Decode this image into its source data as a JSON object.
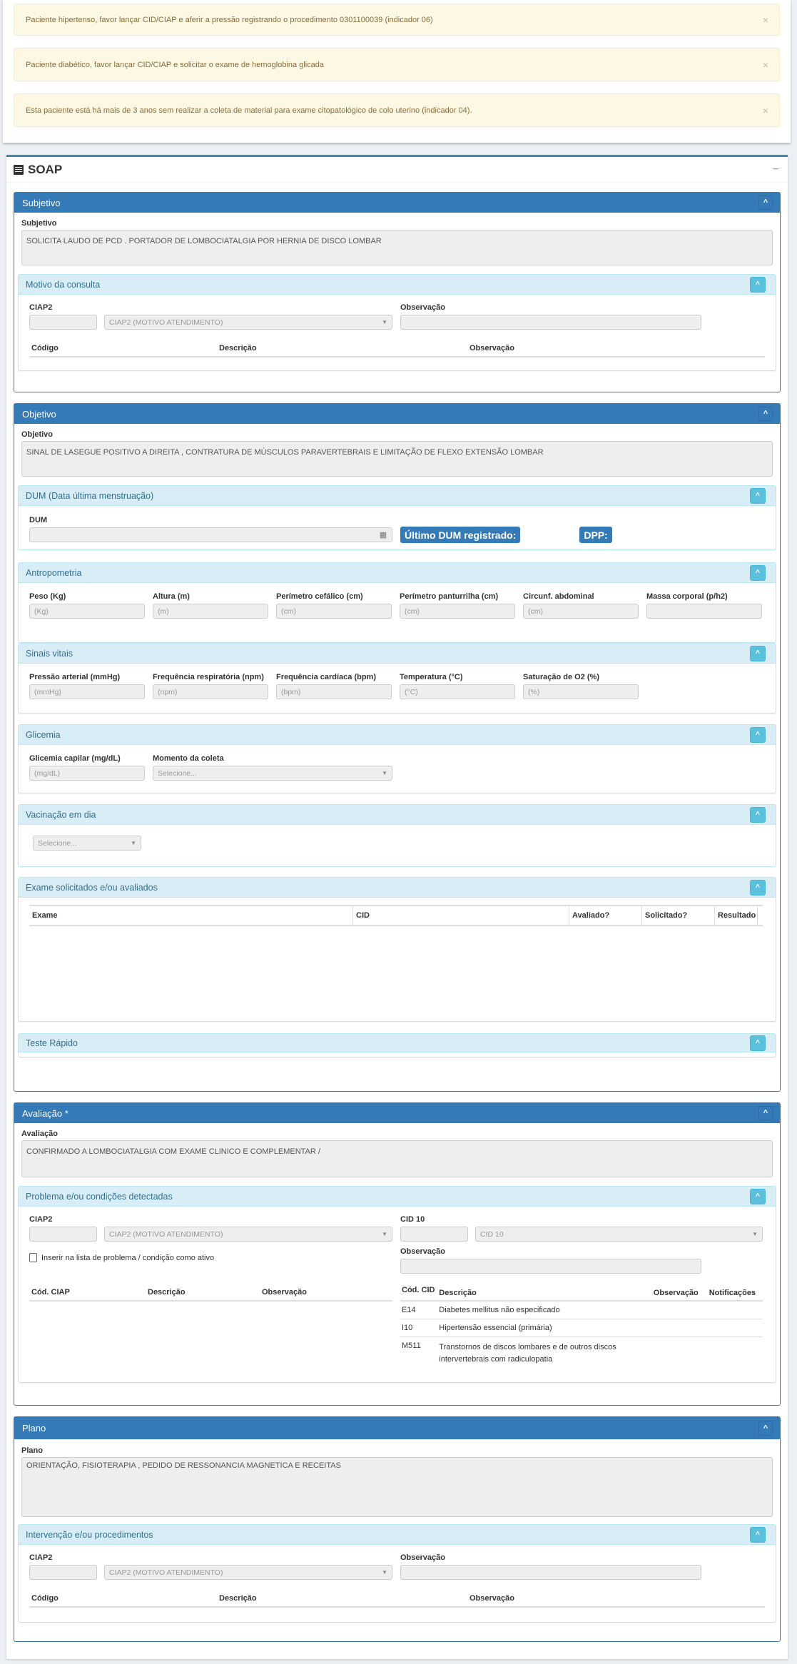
{
  "alerts": [
    {
      "text": "Paciente hipertenso, favor lançar CID/CIAP e aferir a pressão registrando o procedimento 0301100039 (indicador 06)",
      "close": "×"
    },
    {
      "text": "Paciente diabético, favor lançar CID/CIAP e solicitar o exame de hemoglobina glicada",
      "close": "×"
    },
    {
      "text": "Esta paciente está há mais de 3 anos sem realizar a coleta de material para exame citopatológico de colo uterino (indicador 04).",
      "close": "×"
    }
  ],
  "soap": {
    "title": "SOAP",
    "collapse": "−",
    "icon": "list-icon"
  },
  "chevron": "^",
  "subjetivo": {
    "header": "Subjetivo",
    "label": "Subjetivo",
    "text": "SOLICITA LAUDO DE PCD . PORTADOR DE LOMBOCIATALGIA POR HERNIA DE DISCO LOMBAR",
    "motivo": {
      "title": "Motivo da consulta",
      "ciap_label": "CIAP2",
      "ciap_placeholder": "CIAP2 (MOTIVO ATENDIMENTO)",
      "obs_label": "Observação",
      "columns": [
        "Código",
        "Descrição",
        "Observação"
      ]
    }
  },
  "objetivo": {
    "header": "Objetivo",
    "label": "Objetivo",
    "text": "SINAL DE LASEGUE POSITIVO A DIREITA , CONTRATURA DE MÚSCULOS PARAVERTEBRAIS  E LIMITAÇÃO DE FLEXO EXTENSÃO LOMBAR",
    "dum": {
      "title": "DUM (Data última menstruação)",
      "label": "DUM",
      "last": "Último DUM registrado:",
      "dpp": "DPP:"
    },
    "antropometria": {
      "title": "Antropometria",
      "fields": [
        {
          "label": "Peso (Kg)",
          "placeholder": "(Kg)"
        },
        {
          "label": "Altura (m)",
          "placeholder": "(m)"
        },
        {
          "label": "Perímetro cefálico (cm)",
          "placeholder": "(cm)"
        },
        {
          "label": "Perímetro panturrilha (cm)",
          "placeholder": "(cm)"
        },
        {
          "label": "Circunf. abdominal",
          "placeholder": "(cm)"
        },
        {
          "label": "Massa corporal (p/h2)",
          "placeholder": ""
        }
      ]
    },
    "sinais": {
      "title": "Sinais vitais",
      "fields": [
        {
          "label": "Pressão arterial (mmHg)",
          "placeholder": "(mmHg)"
        },
        {
          "label": "Frequência respiratória (npm)",
          "placeholder": "(npm)"
        },
        {
          "label": "Frequência cardíaca (bpm)",
          "placeholder": "(bpm)"
        },
        {
          "label": "Temperatura (°C)",
          "placeholder": "(°C)"
        },
        {
          "label": "Saturação de O2 (%)",
          "placeholder": "(%)"
        }
      ]
    },
    "glicemia": {
      "title": "Glicemia",
      "cap_label": "Glicemia capilar (mg/dL)",
      "cap_placeholder": "(mg/dL)",
      "momento_label": "Momento da coleta",
      "momento_placeholder": "Selecione..."
    },
    "vacinacao": {
      "title": "Vacinação em dia",
      "placeholder": "Selecione..."
    },
    "exames": {
      "title": "Exame solicitados e/ou avaliados",
      "columns": [
        "Exame",
        "CID",
        "Avaliado?",
        "Solicitado?",
        "Resultado"
      ]
    },
    "teste": {
      "title": "Teste Rápido"
    }
  },
  "avaliacao": {
    "header": "Avaliação *",
    "label": "Avaliação",
    "text": "CONFIRMADO A LOMBOCIATALGIA COM EXAME CLINICO E COMPLEMENTAR /",
    "problema": {
      "title": "Problema e/ou condições detectadas",
      "ciap_label": "CIAP2",
      "ciap_placeholder": "CIAP2 (MOTIVO ATENDIMENTO)",
      "cid_label": "CID 10",
      "cid_placeholder": "CID 10",
      "checkbox_label": "Inserir na lista de problema / condição como ativo",
      "obs_label": "Observação",
      "ciap_columns": [
        "Cód. CIAP",
        "Descrição",
        "Observação"
      ],
      "cid_columns": [
        "Cód. CID",
        "Descrição",
        "Observação",
        "Notificações"
      ],
      "cid_rows": [
        {
          "code": "E14",
          "desc": "Diabetes mellitus não especificado"
        },
        {
          "code": "I10",
          "desc": "Hipertensão essencial (primária)"
        },
        {
          "code": "M511",
          "desc": "Transtornos de discos lombares e de outros discos intervertebrais com radiculopatia"
        }
      ]
    }
  },
  "plano": {
    "header": "Plano",
    "label": "Plano",
    "text": "ORIENTAÇÃO, FISIOTERAPIA , PEDIDO DE RESSONANCIA MAGNETICA E RECEITAS",
    "intervencao": {
      "title": "Intervenção e/ou procedimentos",
      "ciap_label": "CIAP2",
      "ciap_placeholder": "CIAP2 (MOTIVO ATENDIMENTO)",
      "obs_label": "Observação",
      "columns": [
        "Código",
        "Descrição",
        "Observação"
      ]
    }
  }
}
